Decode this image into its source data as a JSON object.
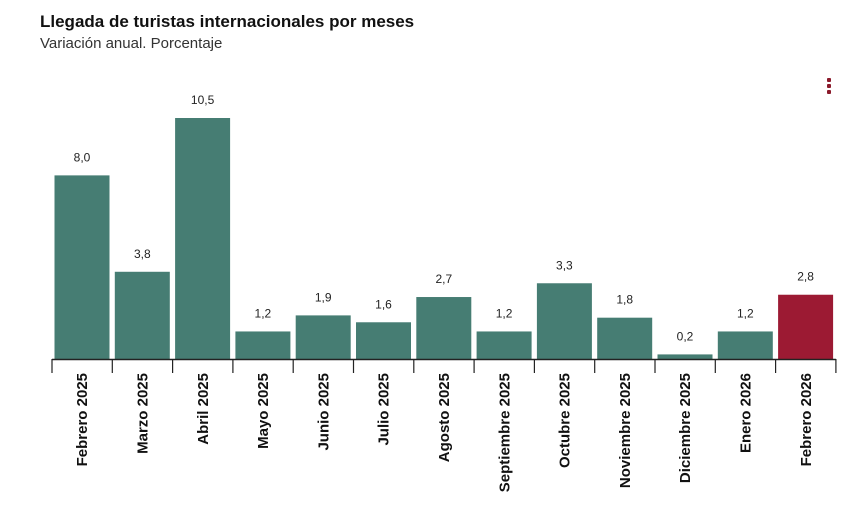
{
  "header": {
    "title": "Llegada de turistas internacionales por meses",
    "subtitle": "Variación anual. Porcentaje"
  },
  "menu": {
    "icon": "kebab-menu-icon"
  },
  "chart_data": {
    "type": "bar",
    "title": "Llegada de turistas internacionales por meses",
    "subtitle": "Variación anual. Porcentaje",
    "xlabel": "",
    "ylabel": "",
    "categories": [
      "Febrero 2025",
      "Marzo 2025",
      "Abril 2025",
      "Mayo 2025",
      "Junio 2025",
      "Julio 2025",
      "Agosto 2025",
      "Septiembre 2025",
      "Octubre 2025",
      "Noviembre 2025",
      "Diciembre 2025",
      "Enero 2026",
      "Febrero 2026"
    ],
    "values": [
      8.0,
      3.8,
      10.5,
      1.2,
      1.9,
      1.6,
      2.7,
      1.2,
      3.3,
      1.8,
      0.2,
      1.2,
      2.8
    ],
    "value_labels": [
      "8,0",
      "3,8",
      "10,5",
      "1,2",
      "1,9",
      "1,6",
      "2,7",
      "1,2",
      "3,3",
      "1,8",
      "0,2",
      "1,2",
      "2,8"
    ],
    "ylim": [
      0,
      10.5
    ],
    "grid": false,
    "legend": "none",
    "colors": {
      "default": "#467d73",
      "highlight": "#9c1a33"
    },
    "highlight_index": 12
  }
}
